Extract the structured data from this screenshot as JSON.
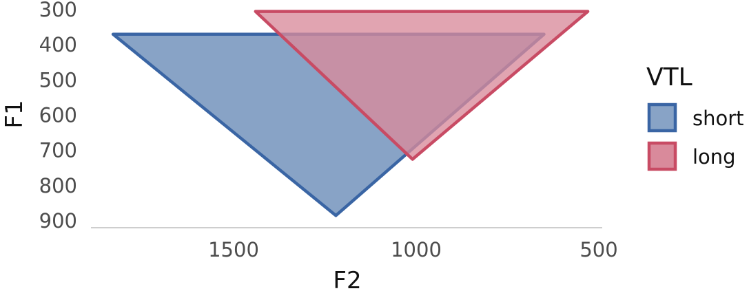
{
  "chart_data": {
    "type": "area",
    "xlabel": "F2",
    "ylabel": "F1",
    "x_reversed": true,
    "y_reversed": true,
    "xlim": [
      1900,
      500
    ],
    "ylim": [
      300,
      900
    ],
    "x_ticks": [
      1500,
      1000,
      500
    ],
    "y_ticks": [
      300,
      400,
      500,
      600,
      700,
      800,
      900
    ],
    "grid": false,
    "legend": {
      "title": "VTL",
      "placement": "right"
    },
    "series": [
      {
        "name": "short",
        "color": "#3a65a4",
        "fill": "#88a3c6",
        "points": [
          {
            "x": 1830,
            "y": 370
          },
          {
            "x": 650,
            "y": 370
          },
          {
            "x": 1220,
            "y": 885
          }
        ]
      },
      {
        "name": "long",
        "color": "#c84b64",
        "fill": "#d98a9b",
        "points": [
          {
            "x": 1440,
            "y": 305
          },
          {
            "x": 530,
            "y": 305
          },
          {
            "x": 1010,
            "y": 725
          }
        ]
      }
    ]
  }
}
